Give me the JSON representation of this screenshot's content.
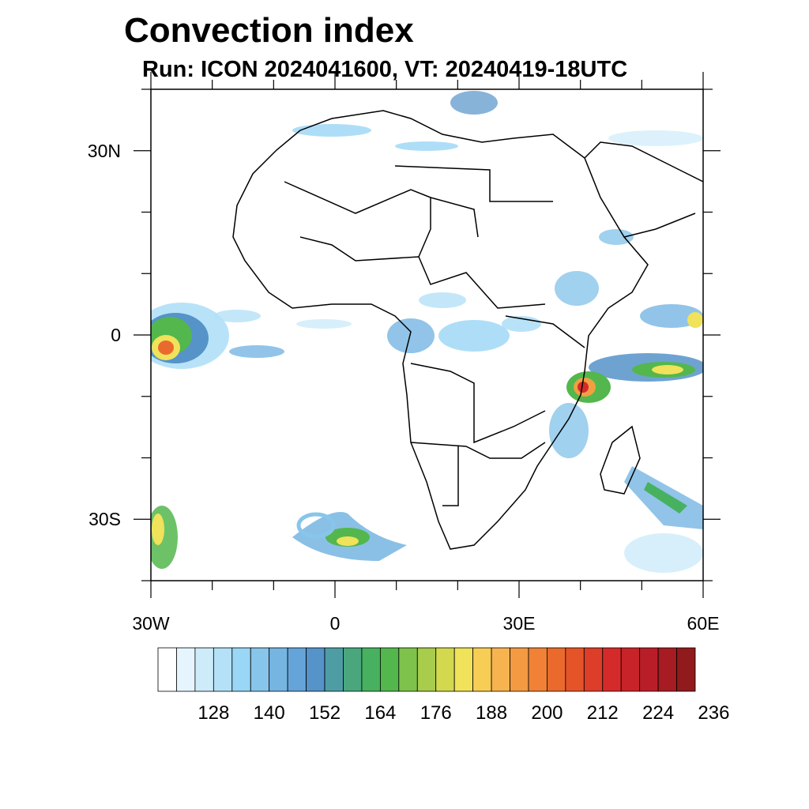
{
  "header": {
    "title": "Convection index",
    "subtitle": "Run: ICON 2024041600,  VT: 20240419-18UTC"
  },
  "axes": {
    "lat_labels": [
      "30N",
      "0",
      "30S"
    ],
    "lat_values": [
      30,
      0,
      -30
    ],
    "lon_labels": [
      "30W",
      "0",
      "30E",
      "60E"
    ],
    "lon_values": [
      -30,
      0,
      30,
      60
    ],
    "lon_range": [
      -30,
      60
    ],
    "lat_range": [
      -40,
      40
    ]
  },
  "colorbar": {
    "colors": [
      "#ffffff",
      "#e6f5fd",
      "#cdebf9",
      "#b4e1f7",
      "#9ad6f5",
      "#88c5ea",
      "#76b5e2",
      "#64a4d8",
      "#5593c9",
      "#4f9da4",
      "#49a67d",
      "#47b160",
      "#53b74d",
      "#7fc24b",
      "#a8cc4c",
      "#d2d94f",
      "#f0e25a",
      "#f8cd56",
      "#f6b34f",
      "#f49a42",
      "#f08137",
      "#ea6a2d",
      "#e45428",
      "#dd3e29",
      "#d52a2a",
      "#c72328",
      "#b91d27",
      "#a71b22",
      "#901a1c"
    ],
    "labels": [
      "128",
      "140",
      "152",
      "164",
      "176",
      "188",
      "200",
      "212",
      "224",
      "236"
    ]
  }
}
